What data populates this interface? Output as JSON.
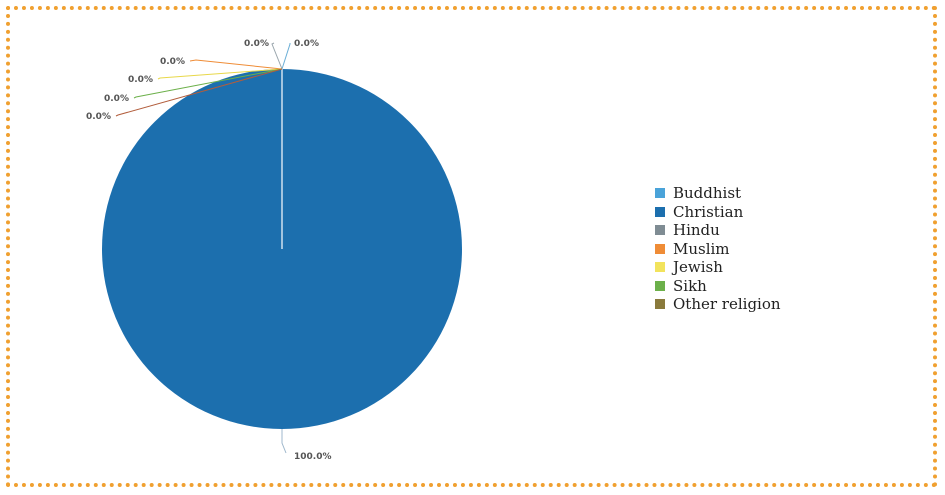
{
  "chart_data": {
    "type": "pie",
    "categories": [
      "Buddhist",
      "Christian",
      "Hindu",
      "Muslim",
      "Jewish",
      "Sikh",
      "Other religion"
    ],
    "values": [
      0.0,
      100.0,
      0.0,
      0.0,
      0.0,
      0.0,
      0.0
    ],
    "value_labels": [
      "0.0%",
      "100.0%",
      "0.0%",
      "0.0%",
      "0.0%",
      "0.0%",
      "0.0%"
    ],
    "colors": [
      "#4aa3d9",
      "#1c6fae",
      "#7f8c93",
      "#ef8c36",
      "#f2e35c",
      "#6cb04a",
      "#8a7a3c"
    ],
    "legend_position": "right",
    "title": ""
  }
}
